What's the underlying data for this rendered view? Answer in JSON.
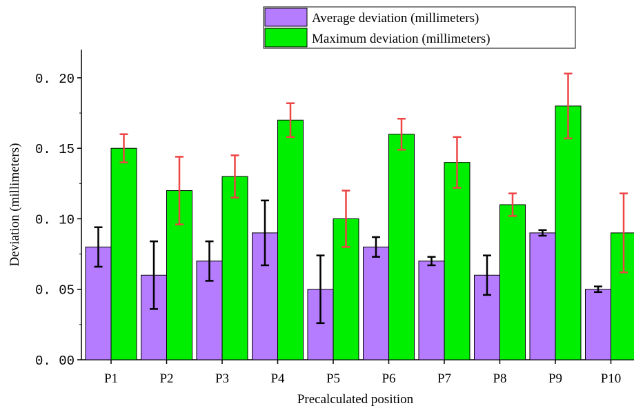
{
  "chart_data": {
    "type": "bar",
    "title": "",
    "xlabel": "Precalculated position",
    "ylabel": "Deviation (millimeters)",
    "ylim": [
      0,
      0.22
    ],
    "yticks": [
      "0. 00",
      "0. 05",
      "0. 10",
      "0. 15",
      "0. 20"
    ],
    "ytick_values": [
      0,
      0.05,
      0.1,
      0.15,
      0.2
    ],
    "categories": [
      "P1",
      "P2",
      "P3",
      "P4",
      "P5",
      "P6",
      "P7",
      "P8",
      "P9",
      "P10"
    ],
    "grid": false,
    "legend_position": "top-right",
    "series": [
      {
        "name": "Average deviation (millimeters)",
        "color": "#b57cff",
        "error_color": "#000000",
        "values": [
          0.08,
          0.06,
          0.07,
          0.09,
          0.05,
          0.08,
          0.07,
          0.06,
          0.09,
          0.05
        ],
        "errors": [
          0.014,
          0.024,
          0.014,
          0.023,
          0.024,
          0.007,
          0.003,
          0.014,
          0.002,
          0.002
        ]
      },
      {
        "name": "Maximum deviation (millimeters)",
        "color": "#00ee00",
        "error_color": "#ee4444",
        "values": [
          0.15,
          0.12,
          0.13,
          0.17,
          0.1,
          0.16,
          0.14,
          0.11,
          0.18,
          0.09
        ],
        "errors": [
          0.01,
          0.024,
          0.015,
          0.012,
          0.02,
          0.011,
          0.018,
          0.008,
          0.023,
          0.028
        ]
      }
    ]
  }
}
